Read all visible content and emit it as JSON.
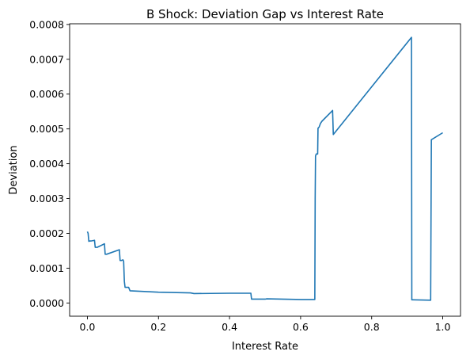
{
  "chart_data": {
    "type": "line",
    "title": "B Shock: Deviation Gap vs Interest Rate",
    "xlabel": "Interest Rate",
    "ylabel": "Deviation",
    "xlim": [
      -0.05,
      1.05
    ],
    "ylim": [
      -3.8e-05,
      0.000802
    ],
    "xticks": [
      0.0,
      0.2,
      0.4,
      0.6,
      0.8,
      1.0
    ],
    "xtick_labels": [
      "0.0",
      "0.2",
      "0.4",
      "0.6",
      "0.8",
      "1.0"
    ],
    "yticks": [
      0.0,
      0.0001,
      0.0002,
      0.0003,
      0.0004,
      0.0005,
      0.0006,
      0.0007,
      0.0008
    ],
    "ytick_labels": [
      "0.0000",
      "0.0001",
      "0.0002",
      "0.0003",
      "0.0004",
      "0.0005",
      "0.0006",
      "0.0007",
      "0.0008"
    ],
    "grid": false,
    "series": [
      {
        "color": "#1f77b4",
        "x": [
          0.0,
          0.002,
          0.004,
          0.006,
          0.01,
          0.02,
          0.022,
          0.028,
          0.048,
          0.05,
          0.054,
          0.09,
          0.092,
          0.096,
          0.1,
          0.102,
          0.104,
          0.106,
          0.116,
          0.12,
          0.2,
          0.29,
          0.3,
          0.4,
          0.46,
          0.462,
          0.5,
          0.505,
          0.6,
          0.64,
          0.641,
          0.642,
          0.643,
          0.644,
          0.648,
          0.649,
          0.652,
          0.656,
          0.66,
          0.69,
          0.691,
          0.692,
          0.912,
          0.913,
          0.916,
          0.966,
          0.968,
          1.0
        ],
        "y": [
          0.000205,
          0.0002,
          0.000177,
          0.000178,
          0.000178,
          0.00018,
          0.00016,
          0.00016,
          0.00017,
          0.00014,
          0.00014,
          0.000153,
          0.000122,
          0.000122,
          0.000124,
          0.00012,
          6.2e-05,
          4.5e-05,
          4.5e-05,
          3.5e-05,
          3.1e-05,
          2.9e-05,
          2.7e-05,
          2.8e-05,
          2.8e-05,
          1.1e-05,
          1.1e-05,
          1.2e-05,
          1e-05,
          1e-05,
          0.0003,
          0.000422,
          0.000425,
          0.000428,
          0.000428,
          0.000502,
          0.000505,
          0.000516,
          0.000522,
          0.000553,
          0.00052,
          0.000484,
          0.000763,
          9e-06,
          9e-06,
          8e-06,
          0.000469,
          0.000489
        ]
      }
    ]
  }
}
